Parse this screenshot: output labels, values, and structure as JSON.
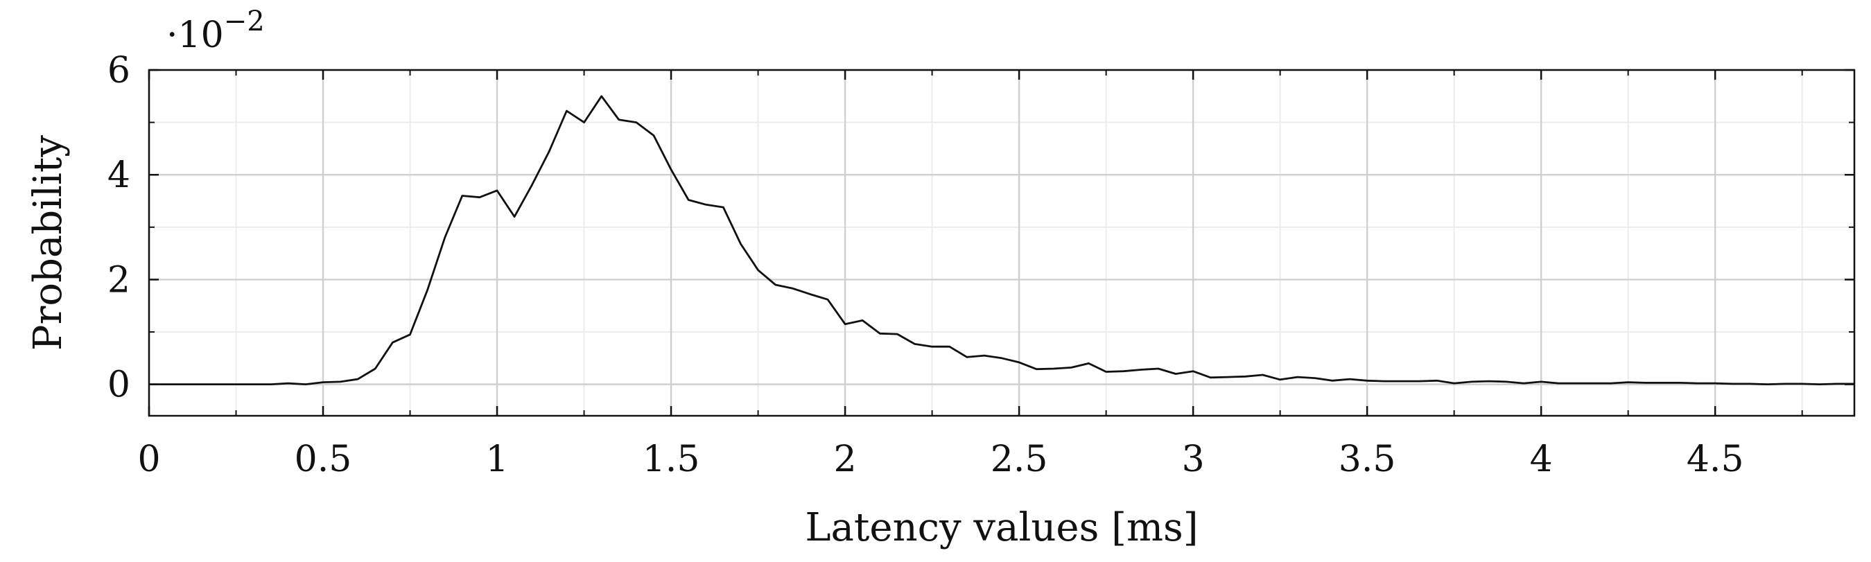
{
  "chart_data": {
    "type": "line",
    "title": "",
    "xlabel": "Latency values [ms]",
    "ylabel": "Probability",
    "y_multiplier": {
      "base": "·10",
      "exponent": "−2"
    },
    "xlim": [
      0,
      4.9
    ],
    "ylim": [
      -0.6,
      6
    ],
    "x_ticks": [
      0,
      0.5,
      1,
      1.5,
      2,
      2.5,
      3,
      3.5,
      4,
      4.5
    ],
    "x_tick_labels": [
      "0",
      "0.5",
      "1",
      "1.5",
      "2",
      "2.5",
      "3",
      "3.5",
      "4",
      "4.5"
    ],
    "y_ticks": [
      0,
      2,
      4,
      6
    ],
    "y_tick_labels": [
      "0",
      "2",
      "4",
      "6"
    ],
    "grid": true,
    "legend": "none",
    "series": [
      {
        "color": "#111111",
        "x": [
          0,
          0.05,
          0.1,
          0.15,
          0.2,
          0.25,
          0.3,
          0.35,
          0.4,
          0.45,
          0.5,
          0.55,
          0.6,
          0.65,
          0.7,
          0.75,
          0.8,
          0.85,
          0.9,
          0.95,
          1,
          1.05,
          1.1,
          1.15,
          1.2,
          1.25,
          1.3,
          1.35,
          1.4,
          1.45,
          1.5,
          1.55,
          1.6,
          1.65,
          1.7,
          1.75,
          1.8,
          1.85,
          1.9,
          1.95,
          2,
          2.05,
          2.1,
          2.15,
          2.2,
          2.25,
          2.3,
          2.35,
          2.4,
          2.45,
          2.5,
          2.55,
          2.6,
          2.65,
          2.7,
          2.75,
          2.8,
          2.85,
          2.9,
          2.95,
          3,
          3.05,
          3.1,
          3.15,
          3.2,
          3.25,
          3.3,
          3.35,
          3.4,
          3.45,
          3.5,
          3.55,
          3.6,
          3.65,
          3.7,
          3.75,
          3.8,
          3.85,
          3.9,
          3.95,
          4,
          4.05,
          4.1,
          4.15,
          4.2,
          4.25,
          4.3,
          4.35,
          4.4,
          4.45,
          4.5,
          4.55,
          4.6,
          4.65,
          4.7,
          4.75,
          4.8,
          4.85,
          4.9
        ],
        "y": [
          0,
          0,
          0,
          0,
          0,
          0,
          0,
          0,
          0.02,
          0,
          0.04,
          0.05,
          0.1,
          0.3,
          0.8,
          0.95,
          1.8,
          2.8,
          3.6,
          3.57,
          3.7,
          3.2,
          3.8,
          4.45,
          5.22,
          5.0,
          5.5,
          5.05,
          5.0,
          4.75,
          4.1,
          3.52,
          3.43,
          3.38,
          2.68,
          2.18,
          1.9,
          1.83,
          1.72,
          1.62,
          1.15,
          1.22,
          0.97,
          0.96,
          0.77,
          0.72,
          0.72,
          0.52,
          0.55,
          0.5,
          0.42,
          0.29,
          0.3,
          0.32,
          0.4,
          0.24,
          0.25,
          0.28,
          0.3,
          0.2,
          0.25,
          0.13,
          0.14,
          0.15,
          0.18,
          0.09,
          0.14,
          0.12,
          0.07,
          0.1,
          0.07,
          0.06,
          0.06,
          0.06,
          0.07,
          0.02,
          0.05,
          0.06,
          0.05,
          0.02,
          0.05,
          0.02,
          0.02,
          0.02,
          0.02,
          0.04,
          0.03,
          0.03,
          0.03,
          0.02,
          0.02,
          0.01,
          0.01,
          0.0,
          0.01,
          0.01,
          0.0,
          0.01,
          0.01
        ]
      }
    ]
  }
}
